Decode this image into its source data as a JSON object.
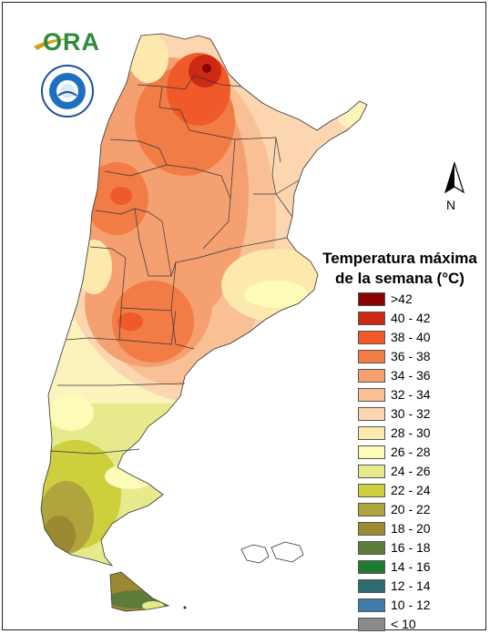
{
  "logo": {
    "name": "ORA",
    "smn_ring_text": "SERVICIO METEOROLOGICO NACIONAL · ARGENTINA"
  },
  "north_arrow": {
    "label": "N"
  },
  "legend": {
    "title_line1": "Temperatura máxima",
    "title_line2": "de la semana (°C)",
    "items": [
      {
        "label": ">42",
        "color": "#8b0000"
      },
      {
        "label": "40 - 42",
        "color": "#cc2a12"
      },
      {
        "label": "38 - 40",
        "color": "#f05a28"
      },
      {
        "label": "36 - 38",
        "color": "#f27c46"
      },
      {
        "label": "34 - 36",
        "color": "#f5a070"
      },
      {
        "label": "32 - 34",
        "color": "#f9bf95"
      },
      {
        "label": "30 - 32",
        "color": "#fbd6b0"
      },
      {
        "label": "28 - 30",
        "color": "#fde8ae"
      },
      {
        "label": "26 - 28",
        "color": "#fcfbb8"
      },
      {
        "label": "24 - 26",
        "color": "#e6e98c"
      },
      {
        "label": "22 - 24",
        "color": "#cdd03c"
      },
      {
        "label": "20 - 22",
        "color": "#b0a43c"
      },
      {
        "label": "18 - 20",
        "color": "#9c8a33"
      },
      {
        "label": "16 - 18",
        "color": "#5d7c3a"
      },
      {
        "label": "14 - 16",
        "color": "#1e7a2e"
      },
      {
        "label": "12 - 14",
        "color": "#2e6b6e"
      },
      {
        "label": "10 - 12",
        "color": "#3f7cad"
      },
      {
        "label": "< 10",
        "color": "#8a8a8a"
      }
    ]
  }
}
